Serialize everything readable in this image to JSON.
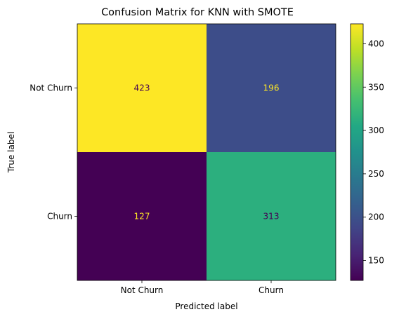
{
  "chart_data": {
    "type": "heatmap",
    "title": "Confusion Matrix for KNN with SMOTE",
    "xlabel": "Predicted label",
    "ylabel": "True label",
    "x_categories": [
      "Not Churn",
      "Churn"
    ],
    "y_categories": [
      "Not Churn",
      "Churn"
    ],
    "values": [
      [
        423,
        196
      ],
      [
        127,
        313
      ]
    ],
    "colormap": "viridis",
    "colorbar": {
      "min": 127,
      "max": 423,
      "ticks": [
        150,
        200,
        250,
        300,
        350,
        400
      ]
    },
    "grid": false
  }
}
